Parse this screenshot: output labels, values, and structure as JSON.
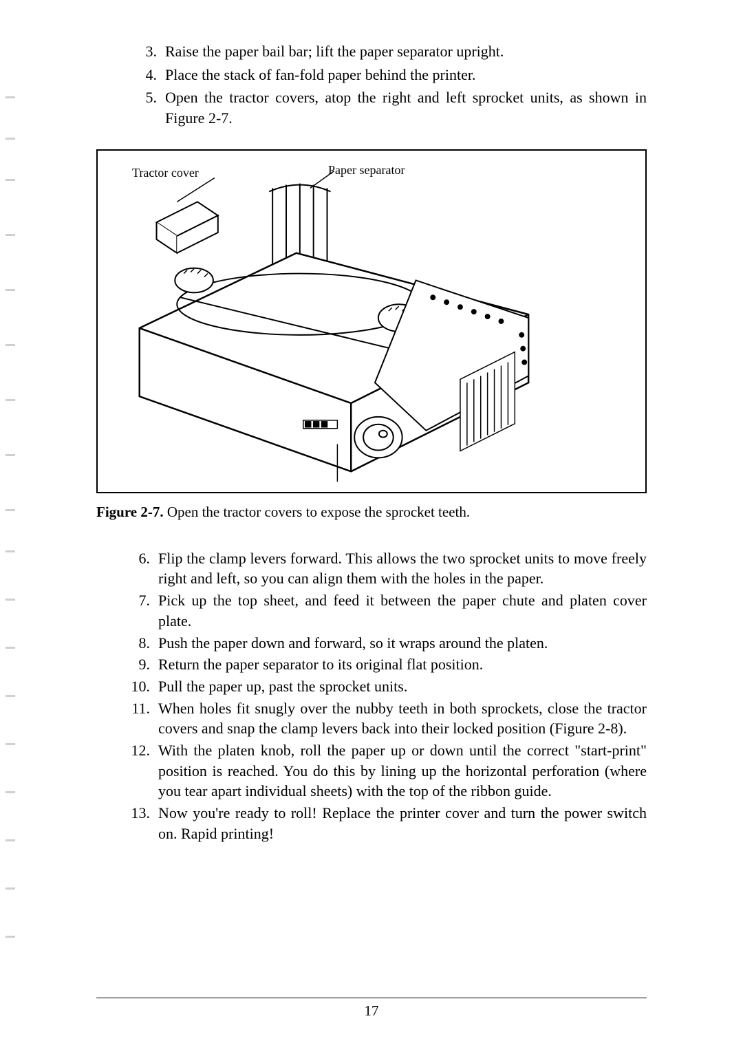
{
  "topList": {
    "items": [
      {
        "num": "3.",
        "text": "Raise the paper bail bar; lift the paper separator upright."
      },
      {
        "num": "4.",
        "text": "Place the stack of fan-fold paper behind the printer."
      },
      {
        "num": "5.",
        "text": "Open the tractor covers, atop the right and left sprocket units, as shown in Figure 2-7."
      }
    ]
  },
  "figure": {
    "labelTractor": "Tractor cover",
    "labelSeparator": "Paper separator",
    "captionBold": "Figure 2-7.",
    "captionText": "  Open the tractor covers to expose the sprocket teeth."
  },
  "bottomList": {
    "items": [
      {
        "num": "6.",
        "text": "Flip the clamp levers forward. This allows the two sprocket units to move freely right and left, so you can align them with the holes in the paper."
      },
      {
        "num": "7.",
        "text": "Pick up the top sheet, and feed it between the paper chute and platen cover plate."
      },
      {
        "num": "8.",
        "text": "Push the paper down and forward, so it wraps around the platen."
      },
      {
        "num": "9.",
        "text": "Return the paper separator to its original flat position."
      },
      {
        "num": "10.",
        "text": "Pull the paper up, past the sprocket units."
      },
      {
        "num": "11.",
        "text": "When holes fit snugly over the nubby teeth in both sprockets, close the tractor covers and snap the clamp levers back into their locked position (Figure 2-8)."
      },
      {
        "num": "12.",
        "text": "With the platen knob, roll the paper up or down until the correct \"start-print\" position is reached. You do this by lining up the horizontal perforation (where you tear apart individual sheets) with the top of the ribbon guide."
      },
      {
        "num": "13.",
        "text": "Now you're ready to roll! Replace the printer cover and turn the power switch on. Rapid printing!"
      }
    ]
  },
  "pageNumber": "17",
  "colors": {
    "text": "#000000",
    "background": "#ffffff",
    "border": "#000000"
  },
  "scanMarkPositions": [
    140,
    200,
    260,
    340,
    420,
    500,
    580,
    660,
    740,
    800,
    870,
    940,
    1010,
    1080,
    1150,
    1220,
    1290,
    1360
  ]
}
